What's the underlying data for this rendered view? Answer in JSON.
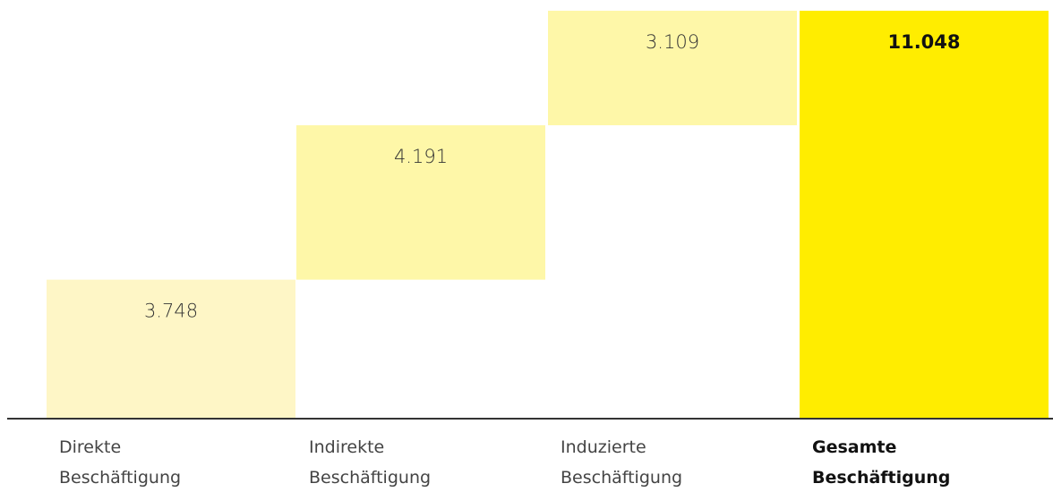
{
  "chart_data": {
    "type": "bar",
    "subtype": "waterfall",
    "categories": [
      [
        "Direkte",
        "Beschäftigung"
      ],
      [
        "Indirekte",
        "Beschäftigung"
      ],
      [
        "Induzierte",
        "Beschäftigung"
      ],
      [
        "Gesamte",
        "Beschäftigung"
      ]
    ],
    "values": [
      3748,
      4191,
      3109,
      11048
    ],
    "value_labels": [
      "3.748",
      "4.191",
      "3.109",
      "11.048"
    ],
    "is_total": [
      false,
      false,
      false,
      true
    ],
    "ylim": [
      0,
      11048
    ],
    "grid": false,
    "legend": "none",
    "colors": {
      "increments": [
        "#fef6c6",
        "#fef7a8",
        "#fef7a8"
      ],
      "total": "#ffed00",
      "baseline": "#333333"
    }
  }
}
